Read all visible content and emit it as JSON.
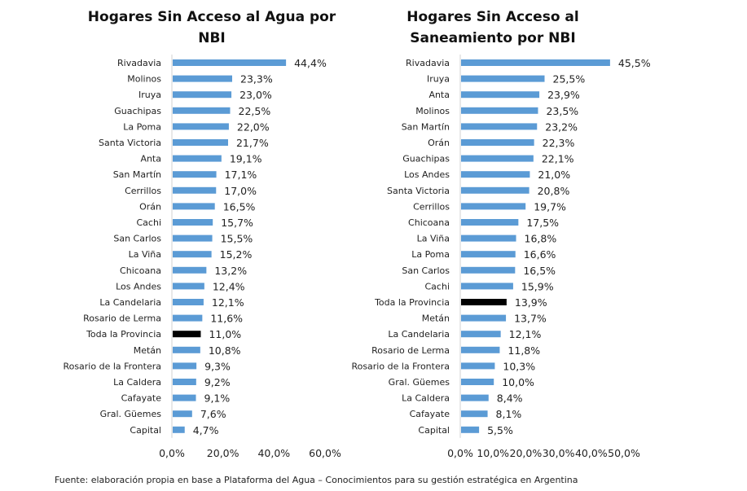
{
  "chart_data": [
    {
      "type": "bar",
      "orientation": "horizontal",
      "title": "Hogares Sin Acceso al Agua por NBI",
      "xlabel": "",
      "ylabel": "",
      "xlim": [
        0,
        60
      ],
      "xticks": [
        "0,0%",
        "20,0%",
        "40,0%",
        "60,0%"
      ],
      "xtick_values": [
        0,
        20,
        40,
        60
      ],
      "grid": false,
      "bar_color": "#5b9bd5",
      "highlight_color": "#000000",
      "highlight_category": "Toda la Provincia",
      "categories": [
        "Rivadavia",
        "Molinos",
        "Iruya",
        "Guachipas",
        "La Poma",
        "Santa Victoria",
        "Anta",
        "San Martín",
        "Cerrillos",
        "Orán",
        "Cachi",
        "San Carlos",
        "La Viña",
        "Chicoana",
        "Los Andes",
        "La Candelaria",
        "Rosario de Lerma",
        "Toda la Provincia",
        "Metán",
        "Rosario de la Frontera",
        "La Caldera",
        "Cafayate",
        "Gral. Güemes",
        "Capital"
      ],
      "values": [
        44.4,
        23.3,
        23.0,
        22.5,
        22.0,
        21.7,
        19.1,
        17.1,
        17.0,
        16.5,
        15.7,
        15.5,
        15.2,
        13.2,
        12.4,
        12.1,
        11.6,
        11.0,
        10.8,
        9.3,
        9.2,
        9.1,
        7.6,
        4.7
      ],
      "labels": [
        "44,4%",
        "23,3%",
        "23,0%",
        "22,5%",
        "22,0%",
        "21,7%",
        "19,1%",
        "17,1%",
        "17,0%",
        "16,5%",
        "15,7%",
        "15,5%",
        "15,2%",
        "13,2%",
        "12,4%",
        "12,1%",
        "11,6%",
        "11,0%",
        "10,8%",
        "9,3%",
        "9,2%",
        "9,1%",
        "7,6%",
        "4,7%"
      ]
    },
    {
      "type": "bar",
      "orientation": "horizontal",
      "title": "Hogares Sin Acceso al Saneamiento por NBI",
      "xlabel": "",
      "ylabel": "",
      "xlim": [
        0,
        50
      ],
      "xticks": [
        "0,0%",
        "10,0%",
        "20,0%",
        "30,0%",
        "40,0%",
        "50,0%"
      ],
      "xtick_values": [
        0,
        10,
        20,
        30,
        40,
        50
      ],
      "grid": false,
      "bar_color": "#5b9bd5",
      "highlight_color": "#000000",
      "highlight_category": "Toda la Provincia",
      "categories": [
        "Rivadavia",
        "Iruya",
        "Anta",
        "Molinos",
        "San Martín",
        "Orán",
        "Guachipas",
        "Los Andes",
        "Santa Victoria",
        "Cerrillos",
        "Chicoana",
        "La Viña",
        "La Poma",
        "San Carlos",
        "Cachi",
        "Toda la Provincia",
        "Metán",
        "La Candelaria",
        "Rosario de Lerma",
        "Rosario de la Frontera",
        "Gral. Güemes",
        "La Caldera",
        "Cafayate",
        "Capital"
      ],
      "values": [
        45.5,
        25.5,
        23.9,
        23.5,
        23.2,
        22.3,
        22.1,
        21.0,
        20.8,
        19.7,
        17.5,
        16.8,
        16.6,
        16.5,
        15.9,
        13.9,
        13.7,
        12.1,
        11.8,
        10.3,
        10.0,
        8.4,
        8.1,
        5.5
      ],
      "labels": [
        "45,5%",
        "25,5%",
        "23,9%",
        "23,5%",
        "23,2%",
        "22,3%",
        "22,1%",
        "21,0%",
        "20,8%",
        "19,7%",
        "17,5%",
        "16,8%",
        "16,6%",
        "16,5%",
        "15,9%",
        "13,9%",
        "13,7%",
        "12,1%",
        "11,8%",
        "10,3%",
        "10,0%",
        "8,4%",
        "8,1%",
        "5,5%"
      ]
    }
  ],
  "titles": {
    "left_line1": "Hogares Sin Acceso al Agua por",
    "left_line2": "NBI",
    "right_line1": "Hogares Sin Acceso al",
    "right_line2": "Saneamiento por NBI"
  },
  "source": "Fuente: elaboración propia en base a Plataforma del Agua – Conocimientos para su gestión estratégica en Argentina"
}
